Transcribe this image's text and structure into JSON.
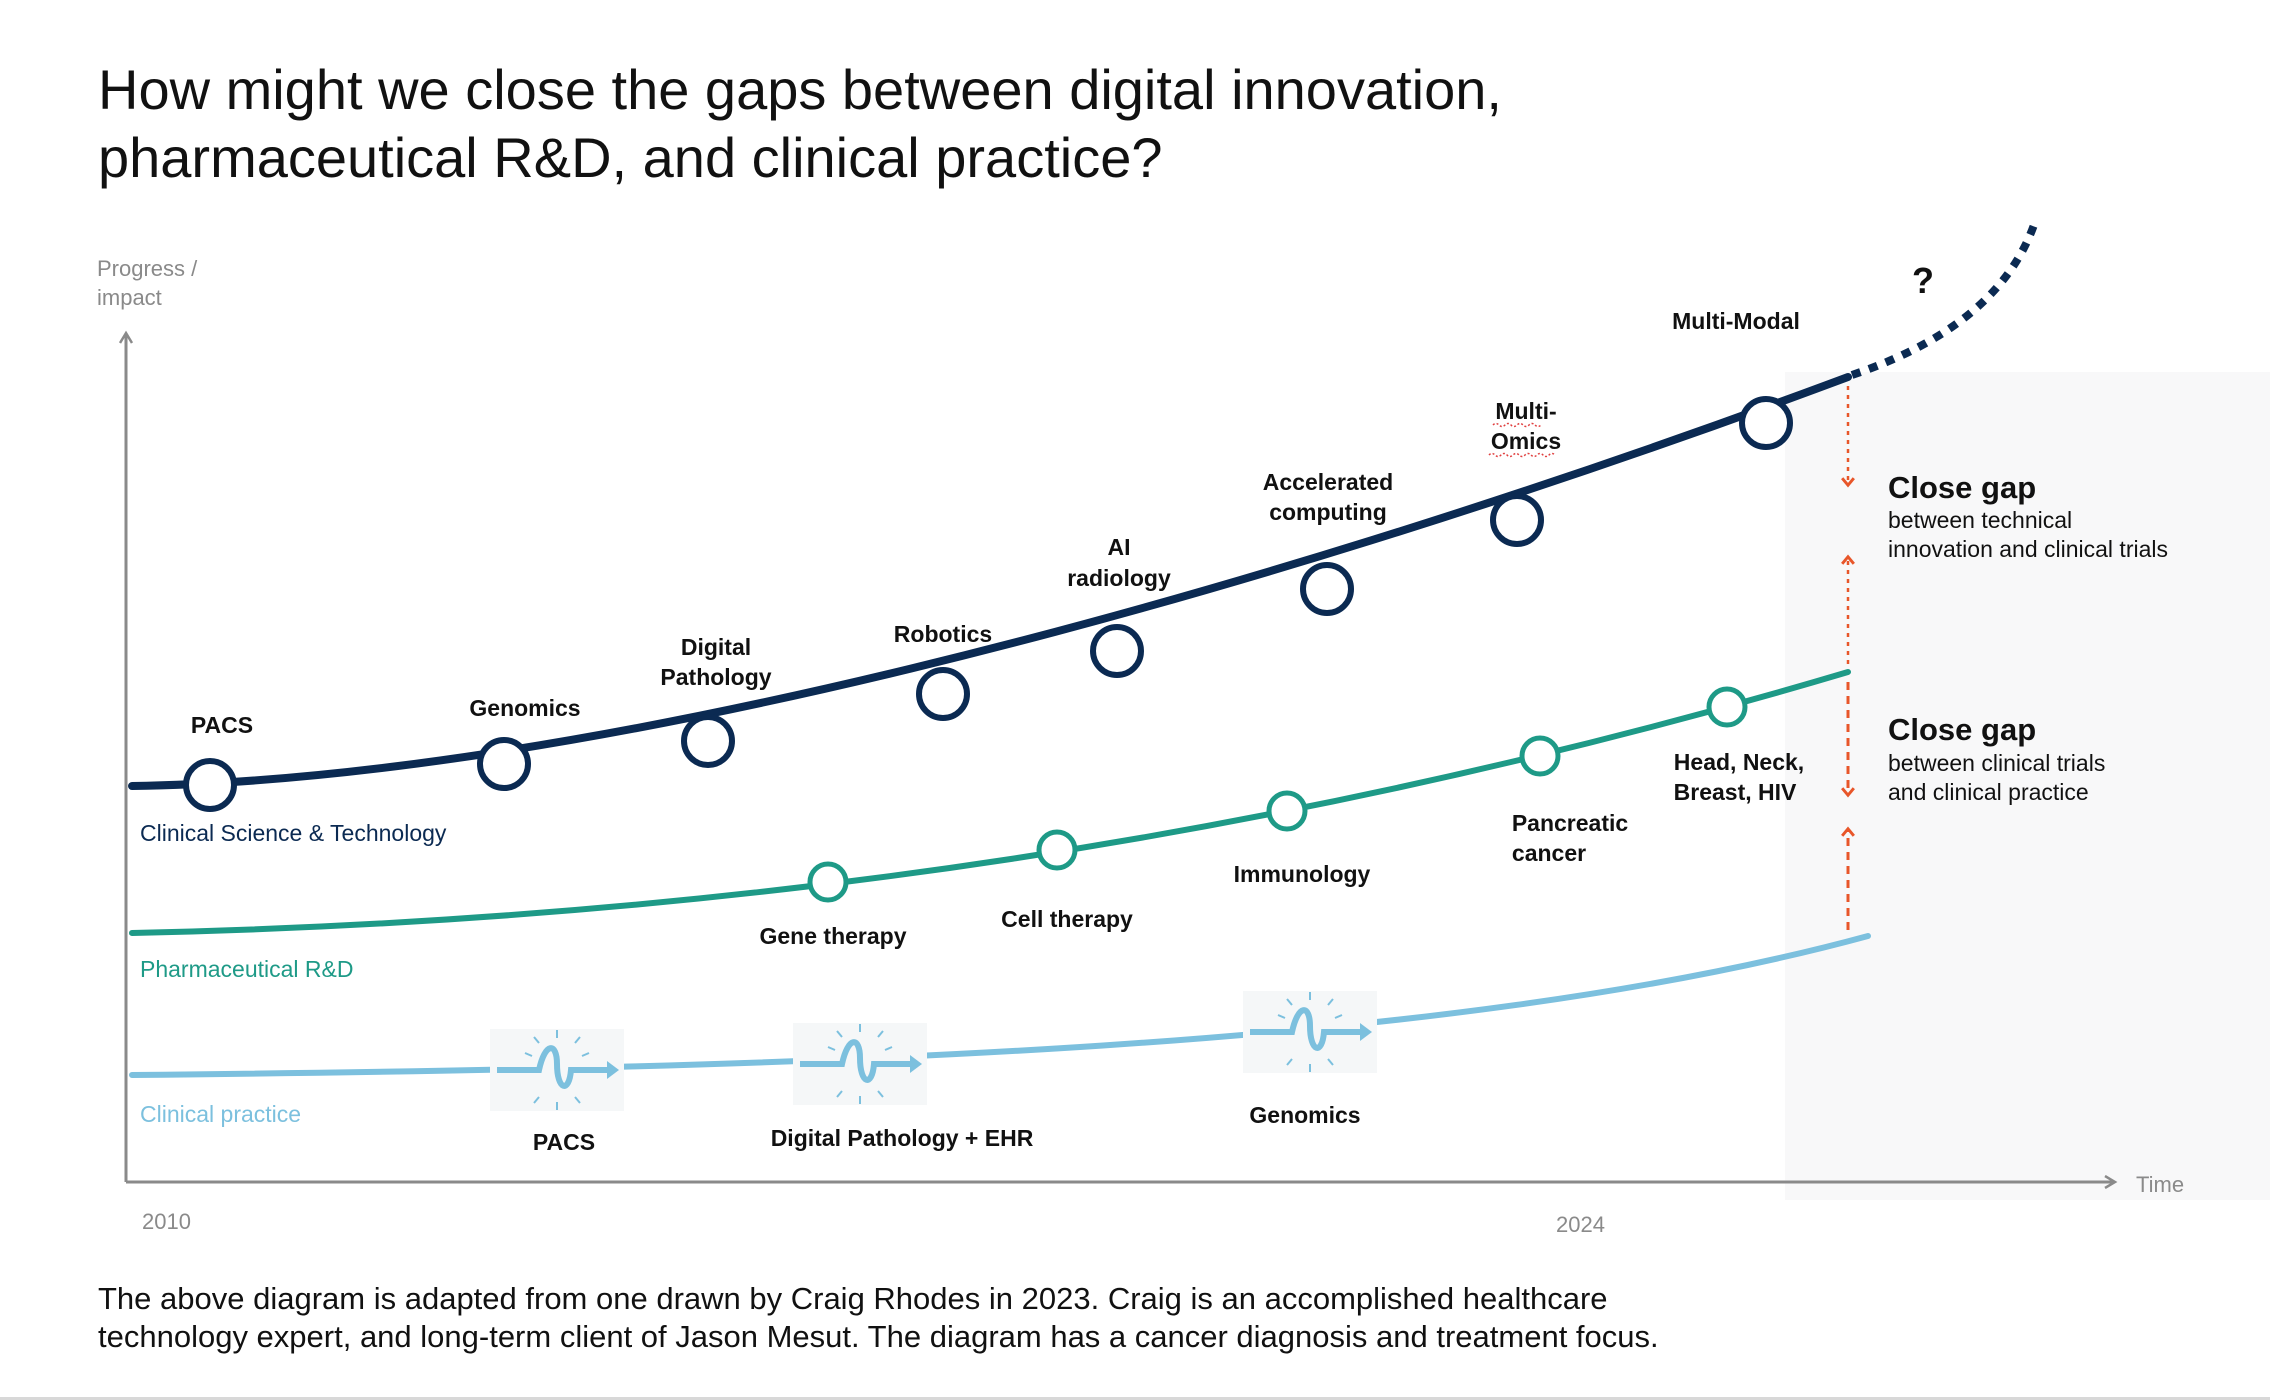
{
  "title": {
    "line1": "How might we close the gaps between digital innovation,",
    "line2": "pharmaceutical R&D, and clinical practice?"
  },
  "axes": {
    "y_label_line1": "Progress /",
    "y_label_line2": "impact",
    "x_label": "Time",
    "x_tick_start": "2010",
    "x_tick_end": "2024"
  },
  "tracks": {
    "tech": {
      "name": "Clinical Science & Technology",
      "color": "#0b2a52"
    },
    "pharma": {
      "name": "Pharmaceutical R&D",
      "color": "#1e9a87"
    },
    "clinical": {
      "name": "Clinical practice",
      "color": "#7cc0de"
    }
  },
  "tech_milestones": [
    {
      "line1": "PACS",
      "line2": ""
    },
    {
      "line1": "Genomics",
      "line2": ""
    },
    {
      "line1": "Digital",
      "line2": "Pathology"
    },
    {
      "line1": "Robotics",
      "line2": ""
    },
    {
      "line1": "AI",
      "line2": "radiology"
    },
    {
      "line1": "Accelerated",
      "line2": "computing"
    },
    {
      "line1": "Multi-",
      "line2": "Omics"
    },
    {
      "line1": "Multi-Modal",
      "line2": ""
    }
  ],
  "pharma_milestones": [
    {
      "line1": "Gene therapy",
      "line2": ""
    },
    {
      "line1": "Cell therapy",
      "line2": ""
    },
    {
      "line1": "Immunology",
      "line2": ""
    },
    {
      "line1": "Pancreatic",
      "line2": "cancer"
    },
    {
      "line1": "Head, Neck,",
      "line2": "Breast, HIV"
    }
  ],
  "clinical_milestones": [
    {
      "label": "PACS"
    },
    {
      "label": "Digital Pathology + EHR"
    },
    {
      "label": "Genomics"
    }
  ],
  "future_mark": "?",
  "gaps": [
    {
      "title": "Close gap",
      "line1": "between technical",
      "line2": "innovation and clinical trials"
    },
    {
      "title": "Close gap",
      "line1": "between clinical trials",
      "line2": "and clinical practice"
    }
  ],
  "colors": {
    "gap_arrow": "#e8562a",
    "axis": "#8a8a8a",
    "future_panel": "#f8f8f9"
  },
  "footnote": {
    "line1": "The above diagram is adapted from one drawn by Craig Rhodes in 2023. Craig is an accomplished healthcare",
    "line2": "technology expert, and long-term client of Jason Mesut. The diagram has a cancer diagnosis and treatment focus."
  }
}
